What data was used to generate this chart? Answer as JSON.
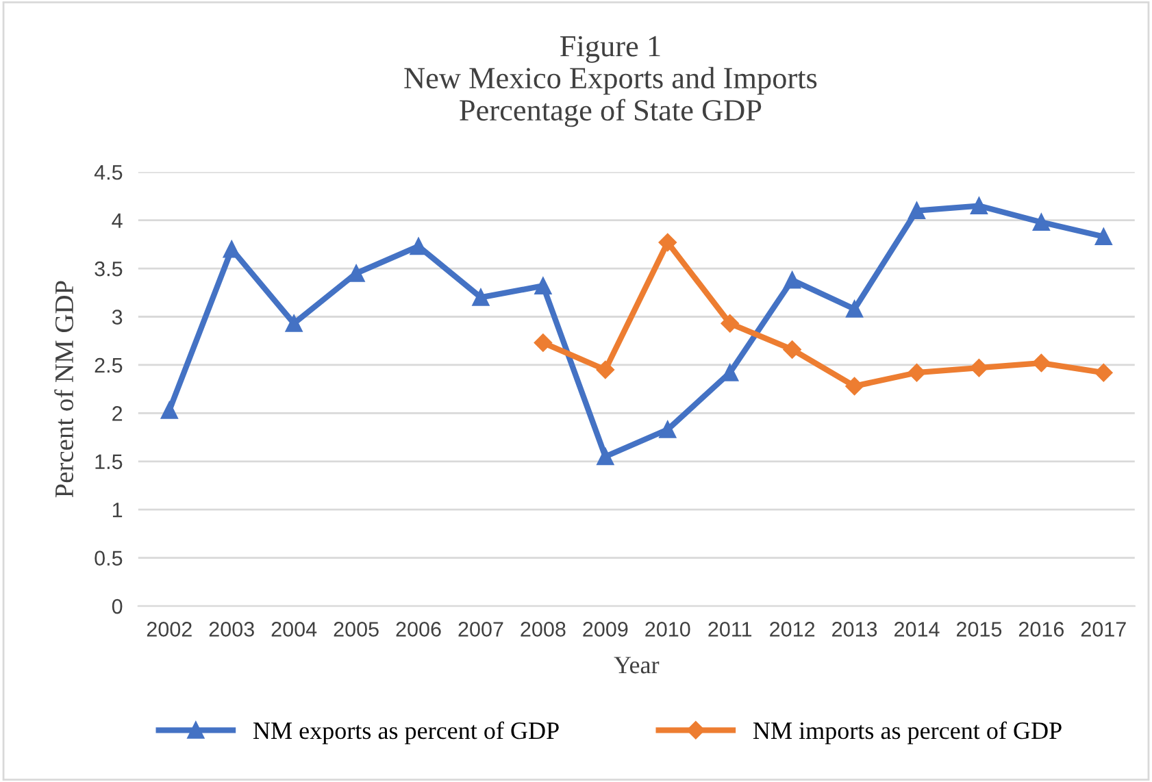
{
  "chart_data": {
    "type": "line",
    "title": "Figure 1\nNew Mexico Exports and Imports\nPercentage of State GDP",
    "xlabel": "Year",
    "ylabel": "Percent of NM GDP",
    "categories": [
      "2002",
      "2003",
      "2004",
      "2005",
      "2006",
      "2007",
      "2008",
      "2009",
      "2010",
      "2011",
      "2012",
      "2013",
      "2014",
      "2015",
      "2016",
      "2017"
    ],
    "series": [
      {
        "name": "NM exports as percent of GDP",
        "color": "#4472c4",
        "marker": "triangle",
        "values": [
          2.03,
          3.7,
          2.93,
          3.45,
          3.73,
          3.2,
          3.32,
          1.55,
          1.83,
          2.42,
          3.38,
          3.08,
          4.1,
          4.15,
          3.98,
          3.83
        ]
      },
      {
        "name": "NM imports as percent of GDP",
        "color": "#ed7d31",
        "marker": "diamond",
        "values": [
          null,
          null,
          null,
          null,
          null,
          null,
          2.73,
          2.45,
          3.77,
          2.93,
          2.66,
          2.28,
          2.42,
          2.47,
          2.52,
          2.42
        ]
      }
    ],
    "ylim": [
      0,
      4.5
    ],
    "yticks": [
      0,
      0.5,
      1,
      1.5,
      2,
      2.5,
      3,
      3.5,
      4,
      4.5
    ],
    "grid": "y",
    "legend": "bottom",
    "line_style": "solid"
  }
}
